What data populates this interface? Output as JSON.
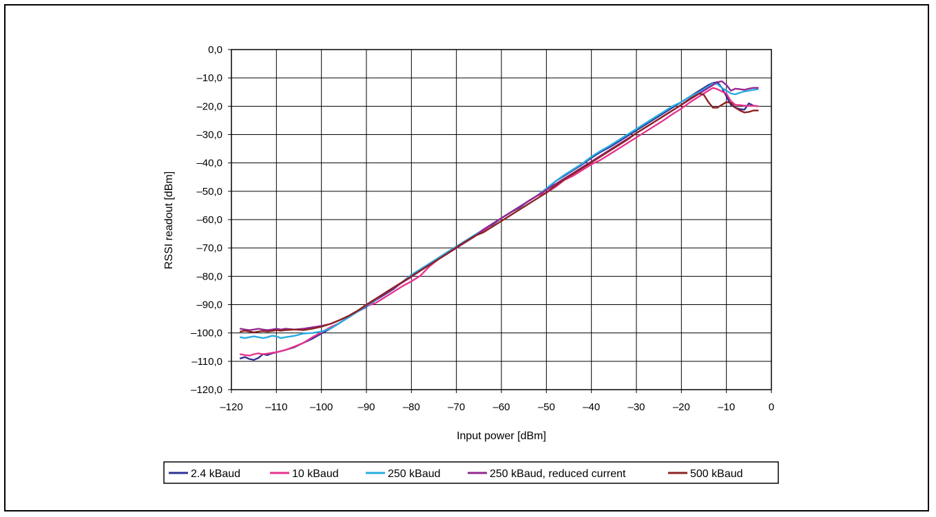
{
  "chart_data": {
    "type": "line",
    "xlabel": "Input power [dBm]",
    "ylabel": "RSSI readout [dBm]",
    "xlim": [
      -120,
      0
    ],
    "ylim": [
      -120,
      0
    ],
    "x_ticks": [
      -120,
      -110,
      -100,
      -90,
      -80,
      -70,
      -60,
      -50,
      -40,
      -30,
      -20,
      -10,
      0
    ],
    "x_tick_labels": [
      "–120",
      "–110",
      "–100",
      "–90",
      "–80",
      "–70",
      "–60",
      "–50",
      "–40",
      "–30",
      "–20",
      "–10",
      "0"
    ],
    "y_ticks": [
      0,
      -10,
      -20,
      -30,
      -40,
      -50,
      -60,
      -70,
      -80,
      -90,
      -100,
      -110,
      -120
    ],
    "y_tick_labels": [
      "0,0",
      "–10,0",
      "–20,0",
      "–30,0",
      "–40,0",
      "–50,0",
      "–60,0",
      "–70,0",
      "–80,0",
      "–90,0",
      "–100,0",
      "–110,0",
      "–120,0"
    ],
    "grid": true,
    "legend_position": "bottom",
    "series": [
      {
        "name": "2.4 kBaud",
        "color": "#2e3192",
        "x": [
          -118,
          -117,
          -116,
          -115,
          -114,
          -113,
          -112,
          -111,
          -110,
          -108,
          -106,
          -104,
          -102,
          -100,
          -98,
          -96,
          -94,
          -92,
          -90,
          -88,
          -86,
          -84,
          -82,
          -80,
          -78,
          -76,
          -74,
          -72,
          -70,
          -68,
          -66,
          -64,
          -62,
          -60,
          -58,
          -56,
          -54,
          -52,
          -50,
          -48,
          -46,
          -44,
          -42,
          -40,
          -38,
          -36,
          -34,
          -32,
          -30,
          -28,
          -26,
          -24,
          -22,
          -20,
          -18,
          -16,
          -15,
          -14,
          -13,
          -12,
          -11,
          -10,
          -9,
          -8,
          -7,
          -6,
          -5,
          -4,
          -3
        ],
        "y": [
          -109,
          -108.5,
          -109.2,
          -109.5,
          -108.8,
          -107.5,
          -107.8,
          -107.2,
          -106.8,
          -106,
          -105,
          -103.5,
          -102,
          -100.2,
          -98.5,
          -96.5,
          -94.5,
          -92.5,
          -90.8,
          -88.5,
          -86.5,
          -84.5,
          -82,
          -79.5,
          -77.8,
          -75.8,
          -73.5,
          -71.5,
          -69.5,
          -67.5,
          -65.8,
          -63.5,
          -61.8,
          -59.5,
          -57.5,
          -55.8,
          -53.5,
          -51.5,
          -49.5,
          -46.5,
          -44.5,
          -42.5,
          -40.5,
          -38.2,
          -36.2,
          -34.5,
          -32.5,
          -30.5,
          -28.5,
          -26.5,
          -24.5,
          -22.5,
          -20.5,
          -18.5,
          -16.5,
          -14.5,
          -13.5,
          -12.5,
          -11.8,
          -11.5,
          -13.5,
          -16.5,
          -19.5,
          -20.5,
          -21,
          -21.2,
          -19,
          -19.8,
          -20
        ]
      },
      {
        "name": "10 kBaud",
        "color": "#e6338f",
        "x": [
          -118,
          -117,
          -116,
          -115,
          -114,
          -113,
          -112,
          -111,
          -110,
          -108,
          -106,
          -104,
          -102,
          -100,
          -98,
          -96,
          -94,
          -92,
          -90,
          -88,
          -86,
          -84,
          -82,
          -80,
          -78,
          -76,
          -74,
          -72,
          -70,
          -68,
          -66,
          -64,
          -62,
          -60,
          -58,
          -56,
          -54,
          -52,
          -50,
          -48,
          -46,
          -44,
          -42,
          -40,
          -38,
          -36,
          -34,
          -32,
          -30,
          -28,
          -26,
          -24,
          -22,
          -20,
          -18,
          -16,
          -15,
          -14,
          -13,
          -12,
          -11,
          -10,
          -9,
          -8,
          -7,
          -6,
          -5,
          -4,
          -3
        ],
        "y": [
          -107.5,
          -107.8,
          -108,
          -107.5,
          -107.2,
          -107.5,
          -107.3,
          -107,
          -106.8,
          -106,
          -104.8,
          -103.5,
          -101.5,
          -99.8,
          -98,
          -96.5,
          -94.5,
          -92.5,
          -90.5,
          -89.5,
          -87.5,
          -85.5,
          -83.5,
          -81.8,
          -79.8,
          -76.5,
          -74,
          -72,
          -70,
          -68,
          -66,
          -64,
          -61.5,
          -59.5,
          -57.5,
          -55.5,
          -53.5,
          -51.5,
          -50.5,
          -48.5,
          -46,
          -44.5,
          -42.5,
          -40.5,
          -39,
          -37,
          -35,
          -33,
          -31,
          -29,
          -27,
          -25,
          -22.8,
          -20.8,
          -18.5,
          -16.5,
          -15.5,
          -14.5,
          -13.5,
          -14,
          -14.8,
          -15.5,
          -18.2,
          -19.5,
          -19.6,
          -19.8,
          -19.9,
          -19.8,
          -20
        ]
      },
      {
        "name": "250 kBaud",
        "color": "#29abe2",
        "x": [
          -118,
          -117,
          -116,
          -115,
          -114,
          -113,
          -112,
          -111,
          -110,
          -109,
          -108,
          -106,
          -104,
          -102,
          -100,
          -98,
          -96,
          -94,
          -92,
          -90,
          -88,
          -86,
          -84,
          -82,
          -80,
          -78,
          -76,
          -74,
          -72,
          -70,
          -68,
          -66,
          -64,
          -62,
          -60,
          -58,
          -56,
          -54,
          -52,
          -50,
          -48,
          -46,
          -44,
          -42,
          -40,
          -38,
          -36,
          -34,
          -32,
          -30,
          -28,
          -26,
          -24,
          -22,
          -20,
          -18,
          -16,
          -15,
          -14,
          -13,
          -12,
          -11,
          -10,
          -9,
          -8,
          -7,
          -6,
          -5,
          -4,
          -3
        ],
        "y": [
          -101.5,
          -101.8,
          -101.5,
          -101.2,
          -101.5,
          -101.8,
          -101.5,
          -101,
          -101.2,
          -101.8,
          -101.5,
          -101,
          -100.2,
          -100,
          -99.5,
          -98.5,
          -96.5,
          -94.5,
          -92.5,
          -90.5,
          -88.5,
          -86,
          -84,
          -82,
          -79.5,
          -77.5,
          -75.5,
          -73.5,
          -71.5,
          -69.5,
          -67.5,
          -65.5,
          -63.5,
          -61.5,
          -59.5,
          -57.5,
          -55.5,
          -53.5,
          -51.5,
          -49,
          -46.5,
          -44.2,
          -42.2,
          -40.2,
          -37.8,
          -35.8,
          -34,
          -32,
          -30,
          -28,
          -26,
          -24,
          -22,
          -20,
          -18.5,
          -16.5,
          -15,
          -14,
          -13,
          -12,
          -12.2,
          -13.5,
          -14.5,
          -15.5,
          -15.8,
          -15.2,
          -14.8,
          -14.5,
          -14.2,
          -14
        ]
      },
      {
        "name": "250 kBaud, reduced current",
        "color": "#93278f",
        "x": [
          -118,
          -117,
          -116,
          -115,
          -114,
          -113,
          -112,
          -111,
          -110,
          -109,
          -108,
          -106,
          -104,
          -102,
          -100,
          -98,
          -96,
          -94,
          -92,
          -90,
          -88,
          -86,
          -84,
          -82,
          -80,
          -78,
          -76,
          -74,
          -72,
          -70,
          -68,
          -66,
          -64,
          -62,
          -60,
          -58,
          -56,
          -54,
          -52,
          -50,
          -48,
          -46,
          -44,
          -42,
          -40,
          -38,
          -36,
          -34,
          -32,
          -30,
          -28,
          -26,
          -24,
          -22,
          -20,
          -18,
          -16,
          -15,
          -14,
          -13,
          -12,
          -11,
          -10,
          -9,
          -8,
          -7,
          -6,
          -5,
          -4,
          -3
        ],
        "y": [
          -98.5,
          -98.8,
          -99,
          -98.8,
          -98.5,
          -98.8,
          -99,
          -98.8,
          -98.5,
          -98.8,
          -98.5,
          -98.8,
          -98.5,
          -98,
          -97.5,
          -96.8,
          -95.5,
          -94,
          -92.2,
          -90.2,
          -88.2,
          -86.2,
          -84.2,
          -82.2,
          -80.2,
          -78,
          -76,
          -74,
          -72,
          -70,
          -68,
          -66,
          -63.5,
          -61.5,
          -59.5,
          -57.5,
          -55.5,
          -53.5,
          -51.5,
          -49.5,
          -47.5,
          -45.5,
          -43.5,
          -41.5,
          -39.5,
          -37.5,
          -35.5,
          -33.5,
          -31.5,
          -29.5,
          -27.5,
          -25.5,
          -23.5,
          -21.5,
          -19.5,
          -17.5,
          -15.5,
          -14.5,
          -13.5,
          -12.5,
          -11.5,
          -11.2,
          -12.5,
          -14.5,
          -13.8,
          -14,
          -14.2,
          -13.8,
          -13.5,
          -13.5
        ]
      },
      {
        "name": "500 kBaud",
        "color": "#8c2323",
        "x": [
          -118,
          -117,
          -116,
          -115,
          -114,
          -113,
          -112,
          -111,
          -110,
          -109,
          -108,
          -106,
          -104,
          -102,
          -100,
          -98,
          -96,
          -94,
          -92,
          -90,
          -88,
          -86,
          -84,
          -82,
          -80,
          -78,
          -76,
          -74,
          -72,
          -70,
          -68,
          -66,
          -64,
          -62,
          -60,
          -58,
          -56,
          -54,
          -52,
          -50,
          -48,
          -46,
          -44,
          -42,
          -40,
          -38,
          -36,
          -34,
          -32,
          -30,
          -28,
          -26,
          -24,
          -22,
          -20,
          -18,
          -16,
          -15,
          -14,
          -13,
          -12,
          -11,
          -10,
          -9,
          -8,
          -7,
          -6,
          -5,
          -4,
          -3
        ],
        "y": [
          -99.5,
          -99.2,
          -99.5,
          -99.8,
          -99.5,
          -99.3,
          -99.5,
          -99.3,
          -99,
          -99.2,
          -99,
          -98.8,
          -99,
          -98.5,
          -97.8,
          -96.8,
          -95.5,
          -94,
          -92.2,
          -90,
          -88,
          -86,
          -84,
          -82,
          -80,
          -78,
          -76,
          -74,
          -72,
          -69.8,
          -67.8,
          -65.8,
          -64.5,
          -62.5,
          -60.5,
          -58.5,
          -56.5,
          -54.5,
          -52.5,
          -50.5,
          -48,
          -45.8,
          -43.8,
          -41.8,
          -39.8,
          -37.8,
          -35.8,
          -33.8,
          -31.8,
          -29.5,
          -27.5,
          -25.5,
          -23.5,
          -21.5,
          -19.5,
          -17.2,
          -15.5,
          -16,
          -18.5,
          -20.5,
          -20.5,
          -19.5,
          -18.5,
          -18.8,
          -20.5,
          -21.5,
          -22.2,
          -22,
          -21.5,
          -21.5
        ]
      }
    ]
  }
}
